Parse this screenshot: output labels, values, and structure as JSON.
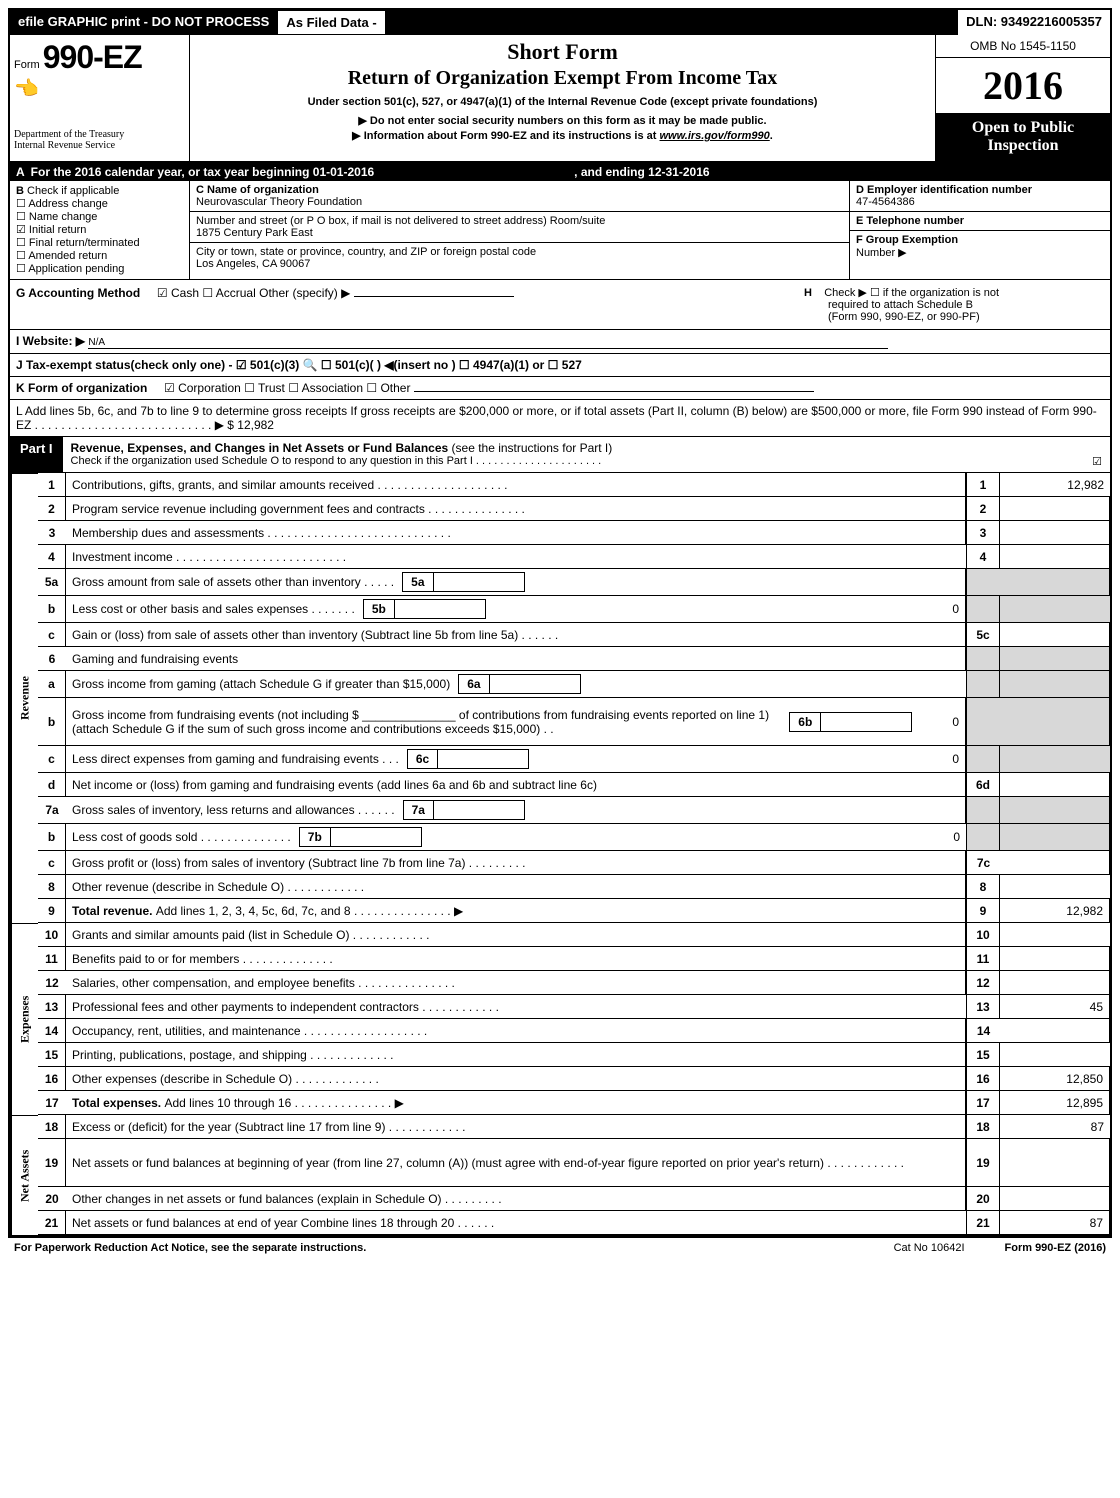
{
  "colors": {
    "black": "#000000",
    "white": "#ffffff",
    "shade": "#d8d8d8"
  },
  "topbar": {
    "left": "efile GRAPHIC print - DO NOT PROCESS",
    "mid": "As Filed Data -",
    "right": "DLN: 93492216005357"
  },
  "header": {
    "form_prefix": "Form",
    "form_number": "990-EZ",
    "treasury1": "Department of the Treasury",
    "treasury2": "Internal Revenue Service",
    "title_short": "Short Form",
    "title_main": "Return of Organization Exempt From Income Tax",
    "under_section": "Under section 501(c), 527, or 4947(a)(1) of the Internal Revenue Code (except private foundations)",
    "arrow1": "▶ Do not enter social security numbers on this form as it may be made public.",
    "arrow2_pre": "▶ Information about Form 990-EZ and its instructions is at ",
    "arrow2_link": "www.irs.gov/form990",
    "arrow2_post": ".",
    "omb": "OMB No 1545-1150",
    "year": "2016",
    "open1": "Open to Public",
    "open2": "Inspection"
  },
  "rowA": {
    "label": "A",
    "text": "For the 2016 calendar year, or tax year beginning 01-01-2016",
    "ending": ", and ending 12-31-2016"
  },
  "colB": {
    "label": "B",
    "heading": "Check if applicable",
    "items": [
      {
        "chk": "☐",
        "text": "Address change"
      },
      {
        "chk": "☐",
        "text": "Name change"
      },
      {
        "chk": "☑",
        "text": "Initial return"
      },
      {
        "chk": "☐",
        "text": "Final return/terminated"
      },
      {
        "chk": "☐",
        "text": "Amended return"
      },
      {
        "chk": "☐",
        "text": "Application pending"
      }
    ]
  },
  "colC": {
    "name_label": "C Name of organization",
    "name": "Neurovascular Theory Foundation",
    "street_label": "Number and street (or P  O  box, if mail is not delivered to street address)  Room/suite",
    "street": "1875 Century Park East",
    "city_label": "City or town, state or province, country, and ZIP or foreign postal code",
    "city": "Los Angeles, CA  90067"
  },
  "colD": {
    "ein_label": "D Employer identification number",
    "ein": "47-4564386",
    "tel_label": "E Telephone number",
    "tel": "",
    "group_label": "F Group Exemption",
    "group_num_lbl": "Number   ▶",
    "group_num": ""
  },
  "rowG": {
    "label": "G Accounting Method",
    "opts": "☑ Cash   ☐ Accrual   Other (specify) ▶",
    "h_label": "H",
    "h_text1": "Check ▶  ☐  if the organization is not",
    "h_text2": "required to attach Schedule B",
    "h_text3": "(Form 990, 990-EZ, or 990-PF)"
  },
  "rowI": {
    "label": "I Website: ▶",
    "val": "N/A"
  },
  "rowJ": {
    "text": "J Tax-exempt status(check only one) - ☑ 501(c)(3) 🔍 ☐ 501(c)(  ) ◀(insert no ) ☐ 4947(a)(1) or ☐ 527"
  },
  "rowK": {
    "label": "K Form of organization",
    "opts": "☑ Corporation   ☐ Trust   ☐ Association   ☐ Other"
  },
  "rowL": {
    "text": "L Add lines 5b, 6c, and 7b to line 9 to determine gross receipts  If gross receipts are $200,000 or more, or if total assets (Part II, column (B) below) are $500,000 or more, file Form 990 instead of Form 990-EZ . . . . . . . . . . . . . . . . . . . . . . . . . . . ▶ $ 12,982"
  },
  "part1": {
    "tag": "Part I",
    "title": "Revenue, Expenses, and Changes in Net Assets or Fund Balances",
    "title_sub": " (see the instructions for Part I)",
    "check_line": "Check if the organization used Schedule O to respond to any question in this Part I . . . . . . . . . . . . . . . . . . . . .",
    "check_box": "☑"
  },
  "sections": [
    {
      "label": "Revenue",
      "rows": [
        {
          "n": "1",
          "desc": "Contributions, gifts, grants, and similar amounts received . . . . . . . . . . . . . . . . . . . .",
          "num": "1",
          "val": "12,982"
        },
        {
          "n": "2",
          "desc": "Program service revenue including government fees and contracts . . . . . . . . . . . . . . .",
          "num": "2",
          "val": ""
        },
        {
          "n": "3",
          "desc": "Membership dues and assessments . . . . . . . . . . . . . . . . . . . . . . . . . . . .",
          "num": "3",
          "val": ""
        },
        {
          "n": "4",
          "desc": "Investment income . . . . . . . . . . . . . . . . . . . . . . . . . .",
          "num": "4",
          "val": ""
        },
        {
          "n": "5a",
          "desc": "Gross amount from sale of assets other than inventory . . . . .",
          "inner_num": "5a",
          "inner_val": "",
          "shade_right": true
        },
        {
          "n": "b",
          "desc": "Less  cost or other basis and sales expenses . . . . . . .",
          "inner_num": "5b",
          "inner_val": "",
          "tail": "0",
          "shade_right": true
        },
        {
          "n": "c",
          "desc": "Gain or (loss) from sale of assets other than inventory (Subtract line 5b from line 5a) . . . . . .",
          "num": "5c",
          "val": ""
        },
        {
          "n": "6",
          "desc": "Gaming and fundraising events",
          "shade_right": true,
          "shade_num": true
        },
        {
          "n": "a",
          "desc": "Gross income from gaming (attach Schedule G if greater than $15,000)",
          "inner_num": "6a",
          "inner_val": "",
          "shade_right": true
        },
        {
          "n": "b",
          "desc_html": "Gross income from fundraising events (not including $ ______________ of contributions from fundraising events reported on line 1) (attach Schedule G if the sum of such gross income and contributions exceeds $15,000)   . .",
          "inner_num": "6b",
          "inner_val": "",
          "tail": "0",
          "shade_right": true,
          "tall": true
        },
        {
          "n": "c",
          "desc": "Less  direct expenses from gaming and fundraising events     . . .",
          "inner_num": "6c",
          "inner_val": "",
          "tail": "0",
          "shade_right": true
        },
        {
          "n": "d",
          "desc": "Net income or (loss) from gaming and fundraising events (add lines 6a and 6b and subtract line 6c)",
          "num": "6d",
          "val": ""
        },
        {
          "n": "7a",
          "desc": "Gross sales of inventory, less returns and allowances . . . . . .",
          "inner_num": "7a",
          "inner_val": "",
          "shade_right": true
        },
        {
          "n": "b",
          "desc": "Less  cost of goods sold          . . . . . . . . . . . . . .",
          "inner_num": "7b",
          "inner_val": "",
          "tail": "0",
          "shade_right": true
        },
        {
          "n": "c",
          "desc": "Gross profit or (loss) from sales of inventory (Subtract line 7b from line 7a) . . . . . . . . .",
          "num": "7c",
          "val": ""
        },
        {
          "n": "8",
          "desc": "Other revenue (describe in Schedule O)                      . . . . . . . . . . . .",
          "num": "8",
          "val": ""
        },
        {
          "n": "9",
          "desc_bold": "Total revenue. ",
          "desc_rest": "Add lines 1, 2, 3, 4, 5c, 6d, 7c, and 8 . . . . . . . . . . . . . . .  ▶",
          "num": "9",
          "val": "12,982"
        }
      ]
    },
    {
      "label": "Expenses",
      "rows": [
        {
          "n": "10",
          "desc": "Grants and similar amounts paid (list in Schedule O)           . . . . . . . . . . . .",
          "num": "10",
          "val": ""
        },
        {
          "n": "11",
          "desc": "Benefits paid to or for members                     . . . . . . . . . . . . . .",
          "num": "11",
          "val": ""
        },
        {
          "n": "12",
          "desc": "Salaries, other compensation, and employee benefits . . . . . . . . . . . . . . .",
          "num": "12",
          "val": ""
        },
        {
          "n": "13",
          "desc": "Professional fees and other payments to independent contractors  . . . . . . . . . . . .",
          "num": "13",
          "val": "45"
        },
        {
          "n": "14",
          "desc": "Occupancy, rent, utilities, and maintenance . . . . . . . . . . . . . . . . . . .",
          "num": "14",
          "val": ""
        },
        {
          "n": "15",
          "desc": "Printing, publications, postage, and shipping            . . . . . . . . . . . . .",
          "num": "15",
          "val": ""
        },
        {
          "n": "16",
          "desc": "Other expenses (describe in Schedule O)               . . . . . . . . . . . . .",
          "num": "16",
          "val": "12,850"
        },
        {
          "n": "17",
          "desc_bold": "Total expenses. ",
          "desc_rest": "Add lines 10 through 16         . . . . . . . . . . . . . . .  ▶",
          "num": "17",
          "val": "12,895"
        }
      ]
    },
    {
      "label": "Net Assets",
      "rows": [
        {
          "n": "18",
          "desc": "Excess or (deficit) for the year (Subtract line 17 from line 9)      . . . . . . . . . . . .",
          "num": "18",
          "val": "87"
        },
        {
          "n": "19",
          "desc": "Net assets or fund balances at beginning of year (from line 27, column (A)) (must agree with end-of-year figure reported on prior year's return)             . . . . . . . . . . . .",
          "num": "19",
          "val": "",
          "tall": true
        },
        {
          "n": "20",
          "desc": "Other changes in net assets or fund balances (explain in Schedule O)    . . . . . . . . .",
          "num": "20",
          "val": ""
        },
        {
          "n": "21",
          "desc": "Net assets or fund balances at end of year  Combine lines 18 through 20       . . . . . .",
          "num": "21",
          "val": "87"
        }
      ]
    }
  ],
  "footer": {
    "left": "For Paperwork Reduction Act Notice, see the separate instructions.",
    "cat": "Cat  No  10642I",
    "form": "Form 990-EZ (2016)"
  }
}
